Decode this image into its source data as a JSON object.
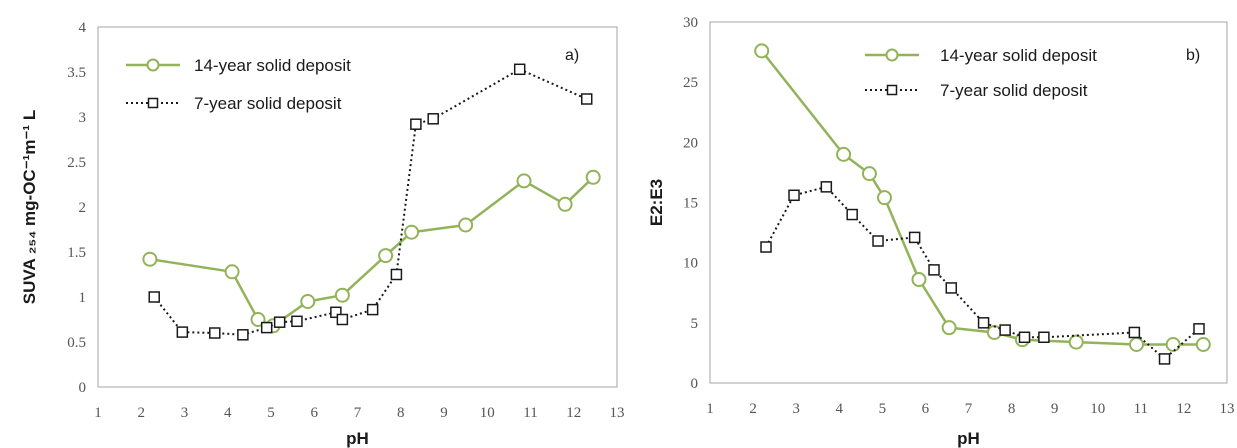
{
  "chart_data": [
    {
      "type": "line",
      "panel_label": "a)",
      "xlabel": "pH",
      "ylabel": "SUVA ₂₅₄ mg-OC⁻¹m⁻¹ L",
      "xlim": [
        1,
        13
      ],
      "ylim": [
        0,
        4
      ],
      "x_ticks": [
        "1",
        "2",
        "3",
        "4",
        "5",
        "6",
        "7",
        "8",
        "9",
        "10",
        "11",
        "12",
        "13"
      ],
      "y_ticks": [
        "0",
        "0.5",
        "1",
        "1.5",
        "2",
        "2.5",
        "3",
        "3.5",
        "4"
      ],
      "grid": false,
      "legend_position": "top-left",
      "series": [
        {
          "name": "14-year solid deposit",
          "color": "#92b35a",
          "marker": "circle",
          "line": "solid",
          "points": [
            [
              2.2,
              1.42
            ],
            [
              4.1,
              1.28
            ],
            [
              4.7,
              0.75
            ],
            [
              5.05,
              0.68
            ],
            [
              5.85,
              0.95
            ],
            [
              6.65,
              1.02
            ],
            [
              7.65,
              1.46
            ],
            [
              8.25,
              1.72
            ],
            [
              9.5,
              1.8
            ],
            [
              10.85,
              2.29
            ],
            [
              11.8,
              2.03
            ],
            [
              12.45,
              2.33
            ]
          ]
        },
        {
          "name": "7-year solid deposit",
          "color": "#1a1a1a",
          "marker": "square",
          "line": "dotted",
          "points": [
            [
              2.3,
              1.0
            ],
            [
              2.95,
              0.61
            ],
            [
              3.7,
              0.6
            ],
            [
              4.35,
              0.58
            ],
            [
              4.9,
              0.66
            ],
            [
              5.2,
              0.72
            ],
            [
              5.6,
              0.73
            ],
            [
              6.5,
              0.83
            ],
            [
              6.65,
              0.75
            ],
            [
              7.35,
              0.86
            ],
            [
              7.9,
              1.25
            ],
            [
              8.35,
              2.92
            ],
            [
              8.75,
              2.98
            ],
            [
              10.75,
              3.53
            ],
            [
              12.3,
              3.2
            ]
          ]
        }
      ]
    },
    {
      "type": "line",
      "panel_label": "b)",
      "xlabel": "pH",
      "ylabel": "E2:E3",
      "xlim": [
        1,
        13
      ],
      "ylim": [
        0,
        30
      ],
      "x_ticks": [
        "1",
        "2",
        "3",
        "4",
        "5",
        "6",
        "7",
        "8",
        "9",
        "10",
        "11",
        "12",
        "13"
      ],
      "y_ticks": [
        "0",
        "5",
        "10",
        "15",
        "20",
        "25",
        "30"
      ],
      "grid": false,
      "legend_position": "top-right",
      "series": [
        {
          "name": "14-year solid deposit",
          "color": "#92b35a",
          "marker": "circle",
          "line": "solid",
          "points": [
            [
              2.2,
              27.6
            ],
            [
              4.1,
              19.0
            ],
            [
              4.7,
              17.4
            ],
            [
              5.05,
              15.4
            ],
            [
              5.85,
              8.6
            ],
            [
              6.55,
              4.6
            ],
            [
              7.6,
              4.2
            ],
            [
              8.25,
              3.6
            ],
            [
              9.5,
              3.4
            ],
            [
              10.9,
              3.2
            ],
            [
              11.75,
              3.2
            ],
            [
              12.45,
              3.2
            ]
          ]
        },
        {
          "name": "7-year solid deposit",
          "color": "#1a1a1a",
          "marker": "square",
          "line": "dotted",
          "points": [
            [
              2.3,
              11.3
            ],
            [
              2.95,
              15.6
            ],
            [
              3.7,
              16.3
            ],
            [
              4.3,
              14.0
            ],
            [
              4.9,
              11.8
            ],
            [
              5.75,
              12.1
            ],
            [
              6.2,
              9.4
            ],
            [
              6.6,
              7.9
            ],
            [
              7.35,
              5.0
            ],
            [
              7.85,
              4.4
            ],
            [
              8.3,
              3.8
            ],
            [
              8.75,
              3.8
            ],
            [
              10.85,
              4.2
            ],
            [
              11.55,
              2.0
            ],
            [
              12.35,
              4.5
            ]
          ]
        }
      ]
    }
  ]
}
